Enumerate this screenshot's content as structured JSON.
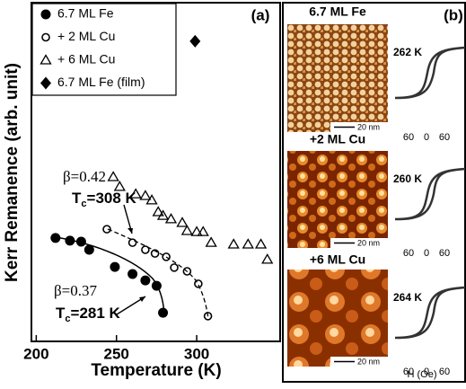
{
  "chart_data": {
    "type": "scatter",
    "panel_label": "(a)",
    "x_label": "Temperature (K)",
    "y_label": "Kerr Remanence (arb. unit)",
    "xlim": [
      197,
      352
    ],
    "xticks": [
      200,
      250,
      300
    ],
    "ylim": [
      0,
      10
    ],
    "series": [
      {
        "name": "6.7 ML Fe",
        "marker": "circle-filled",
        "color": "#000000",
        "x": [
          212,
          221,
          228,
          233,
          249,
          260,
          268,
          275,
          279
        ],
        "values": [
          3.07,
          2.99,
          2.96,
          2.72,
          2.21,
          2.0,
          1.81,
          1.65,
          0.85
        ]
      },
      {
        "name": "+ 2 ML Cu",
        "marker": "circle-open",
        "color": "#000000",
        "x": [
          244,
          260,
          268,
          274,
          281,
          286,
          294,
          301,
          307
        ],
        "values": [
          3.33,
          2.93,
          2.72,
          2.61,
          2.51,
          2.19,
          2.08,
          1.71,
          0.75
        ]
      },
      {
        "name": "+ 6 ML Cu",
        "marker": "triangle-open",
        "color": "#000000",
        "x": [
          248,
          252,
          262,
          268,
          272,
          276,
          279,
          284,
          291,
          294,
          300,
          304,
          309,
          323,
          332,
          340,
          344
        ],
        "values": [
          4.88,
          4.59,
          4.37,
          4.32,
          4.19,
          3.84,
          3.73,
          3.63,
          3.52,
          3.28,
          3.25,
          3.25,
          2.93,
          2.88,
          2.88,
          2.88,
          2.43
        ]
      },
      {
        "name": "6.7 ML Fe (film)",
        "marker": "diamond-filled",
        "color": "#000000",
        "x": [
          299
        ],
        "values": [
          8.91
        ]
      }
    ],
    "annotations": [
      {
        "beta": "β=0.42",
        "t": "T",
        "sub": "c",
        "rest": "=308 K"
      },
      {
        "beta": "β=0.37",
        "t": "T",
        "sub": "c",
        "rest": "=281 K"
      }
    ]
  },
  "panel_b": {
    "label": "(b)",
    "x_label": "H (Oe)",
    "rows": [
      {
        "title": "6.7 ML Fe",
        "scale": "20 nm",
        "temp": "262 K",
        "ticks": [
          "60",
          "0",
          "60"
        ]
      },
      {
        "title": "+2 ML Cu",
        "scale": "20 nm",
        "temp": "260 K",
        "ticks": [
          "60",
          "0",
          "60"
        ]
      },
      {
        "title": "+6 ML Cu",
        "scale": "20 nm",
        "temp": "264 K",
        "ticks": [
          "60",
          "0",
          "60"
        ]
      }
    ]
  }
}
